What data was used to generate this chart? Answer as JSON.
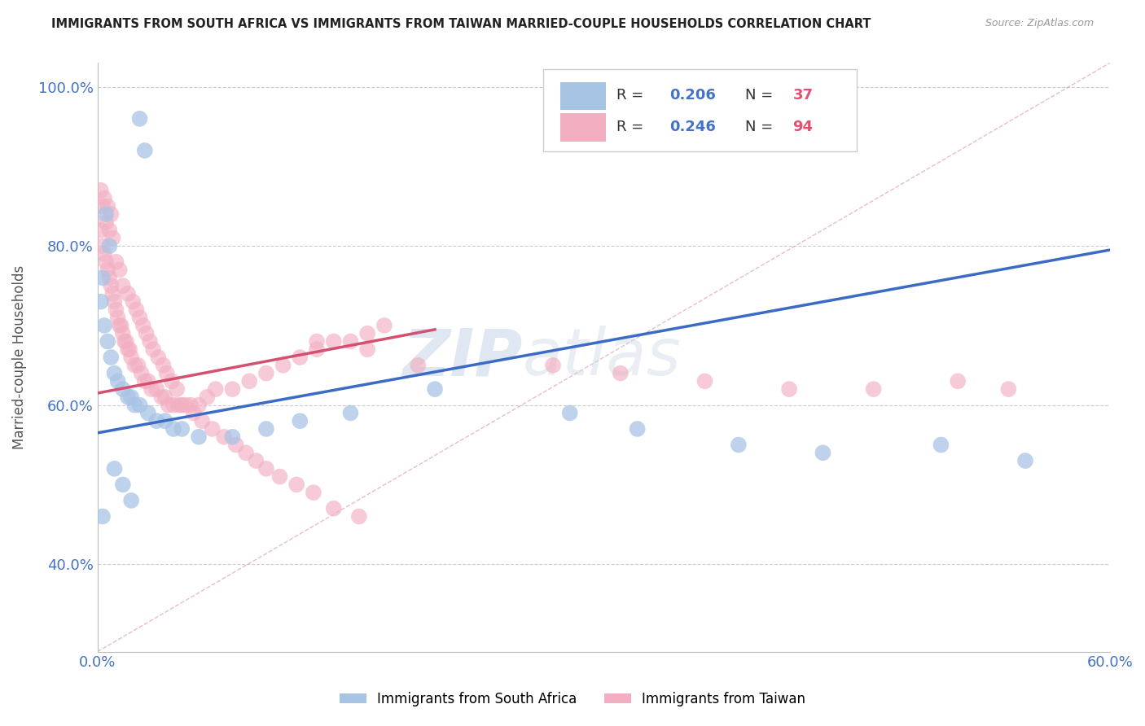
{
  "title": "IMMIGRANTS FROM SOUTH AFRICA VS IMMIGRANTS FROM TAIWAN MARRIED-COUPLE HOUSEHOLDS CORRELATION CHART",
  "source": "Source: ZipAtlas.com",
  "ylabel": "Married-couple Households",
  "xlim": [
    0.0,
    0.6
  ],
  "ylim": [
    0.29,
    1.03
  ],
  "xticks": [
    0.0,
    0.1,
    0.2,
    0.3,
    0.4,
    0.5,
    0.6
  ],
  "xticklabels": [
    "0.0%",
    "",
    "",
    "",
    "",
    "",
    "60.0%"
  ],
  "yticks": [
    0.4,
    0.6,
    0.8,
    1.0
  ],
  "yticklabels": [
    "40.0%",
    "60.0%",
    "80.0%",
    "100.0%"
  ],
  "color_sa": "#a8c4e5",
  "color_tw": "#f2afc2",
  "color_sa_line": "#3b6bc4",
  "color_tw_line": "#d45070",
  "color_diag": "#e0a0b0",
  "watermark_zip": "ZIP",
  "watermark_atlas": "atlas",
  "sa_x": [
    0.025,
    0.028,
    0.005,
    0.007,
    0.003,
    0.002,
    0.004,
    0.006,
    0.008,
    0.01,
    0.012,
    0.015,
    0.018,
    0.02,
    0.022,
    0.025,
    0.03,
    0.035,
    0.04,
    0.045,
    0.05,
    0.06,
    0.08,
    0.1,
    0.12,
    0.15,
    0.2,
    0.28,
    0.32,
    0.38,
    0.43,
    0.5,
    0.55,
    0.01,
    0.015,
    0.02,
    0.003
  ],
  "sa_y": [
    0.96,
    0.92,
    0.84,
    0.8,
    0.76,
    0.73,
    0.7,
    0.68,
    0.66,
    0.64,
    0.63,
    0.62,
    0.61,
    0.61,
    0.6,
    0.6,
    0.59,
    0.58,
    0.58,
    0.57,
    0.57,
    0.56,
    0.56,
    0.57,
    0.58,
    0.59,
    0.62,
    0.59,
    0.57,
    0.55,
    0.54,
    0.55,
    0.53,
    0.52,
    0.5,
    0.48,
    0.46
  ],
  "tw_x": [
    0.002,
    0.003,
    0.004,
    0.005,
    0.006,
    0.007,
    0.008,
    0.009,
    0.01,
    0.011,
    0.012,
    0.013,
    0.014,
    0.015,
    0.016,
    0.017,
    0.018,
    0.019,
    0.02,
    0.022,
    0.024,
    0.026,
    0.028,
    0.03,
    0.032,
    0.035,
    0.038,
    0.04,
    0.042,
    0.045,
    0.048,
    0.05,
    0.055,
    0.06,
    0.065,
    0.07,
    0.08,
    0.09,
    0.1,
    0.11,
    0.12,
    0.13,
    0.14,
    0.15,
    0.16,
    0.17,
    0.003,
    0.005,
    0.007,
    0.009,
    0.002,
    0.004,
    0.006,
    0.008,
    0.011,
    0.013,
    0.015,
    0.018,
    0.021,
    0.023,
    0.025,
    0.027,
    0.029,
    0.031,
    0.033,
    0.036,
    0.039,
    0.041,
    0.044,
    0.047,
    0.052,
    0.057,
    0.062,
    0.068,
    0.075,
    0.082,
    0.088,
    0.094,
    0.1,
    0.108,
    0.118,
    0.128,
    0.14,
    0.155,
    0.27,
    0.31,
    0.36,
    0.41,
    0.46,
    0.51,
    0.54,
    0.13,
    0.16,
    0.19
  ],
  "tw_y": [
    0.82,
    0.8,
    0.79,
    0.78,
    0.77,
    0.76,
    0.75,
    0.74,
    0.73,
    0.72,
    0.71,
    0.7,
    0.7,
    0.69,
    0.68,
    0.68,
    0.67,
    0.67,
    0.66,
    0.65,
    0.65,
    0.64,
    0.63,
    0.63,
    0.62,
    0.62,
    0.61,
    0.61,
    0.6,
    0.6,
    0.6,
    0.6,
    0.6,
    0.6,
    0.61,
    0.62,
    0.62,
    0.63,
    0.64,
    0.65,
    0.66,
    0.67,
    0.68,
    0.68,
    0.69,
    0.7,
    0.85,
    0.83,
    0.82,
    0.81,
    0.87,
    0.86,
    0.85,
    0.84,
    0.78,
    0.77,
    0.75,
    0.74,
    0.73,
    0.72,
    0.71,
    0.7,
    0.69,
    0.68,
    0.67,
    0.66,
    0.65,
    0.64,
    0.63,
    0.62,
    0.6,
    0.59,
    0.58,
    0.57,
    0.56,
    0.55,
    0.54,
    0.53,
    0.52,
    0.51,
    0.5,
    0.49,
    0.47,
    0.46,
    0.65,
    0.64,
    0.63,
    0.62,
    0.62,
    0.63,
    0.62,
    0.68,
    0.67,
    0.65
  ],
  "sa_line_x0": 0.0,
  "sa_line_y0": 0.565,
  "sa_line_x1": 0.6,
  "sa_line_y1": 0.795,
  "tw_line_x0": 0.0,
  "tw_line_y0": 0.615,
  "tw_line_x1": 0.2,
  "tw_line_y1": 0.695
}
